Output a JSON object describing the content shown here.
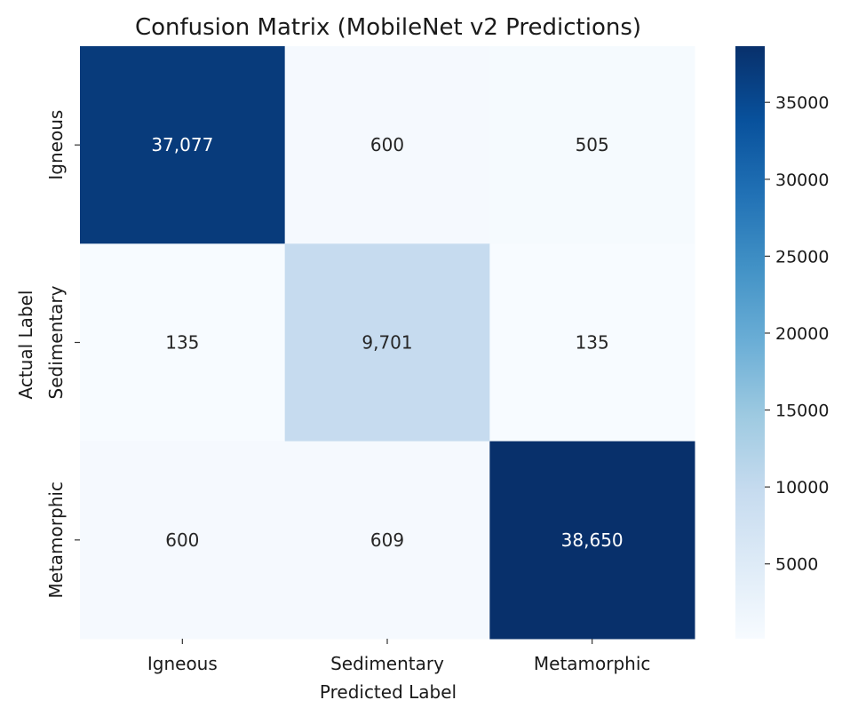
{
  "chart_data": {
    "type": "heatmap",
    "title": "Confusion Matrix (MobileNet v2 Predictions)",
    "xlabel": "Predicted Label",
    "ylabel": "Actual Label",
    "x_categories": [
      "Igneous",
      "Sedimentary",
      "Metamorphic"
    ],
    "y_categories": [
      "Igneous",
      "Sedimentary",
      "Metamorphic"
    ],
    "values": [
      [
        37077,
        600,
        505
      ],
      [
        135,
        9701,
        135
      ],
      [
        600,
        609,
        38650
      ]
    ],
    "cell_labels": [
      [
        "37,077",
        "600",
        "505"
      ],
      [
        "135",
        "9,701",
        "135"
      ],
      [
        "600",
        "609",
        "38,650"
      ]
    ],
    "colormap": "Blues",
    "colormap_stops": [
      "#f7fbff",
      "#deebf7",
      "#c6dbef",
      "#9ecae1",
      "#6baed6",
      "#4292c6",
      "#2171b5",
      "#08519c",
      "#08306b"
    ],
    "vmin": 135,
    "vmax": 38650,
    "colorbar_ticks": [
      5000,
      10000,
      15000,
      20000,
      25000,
      30000,
      35000
    ],
    "colorbar_tick_labels": [
      "5000",
      "10000",
      "15000",
      "20000",
      "25000",
      "30000",
      "35000"
    ]
  }
}
